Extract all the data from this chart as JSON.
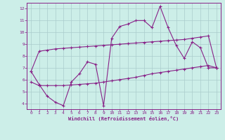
{
  "xlabel": "Windchill (Refroidissement éolien,°C)",
  "background_color": "#cceee8",
  "grid_color": "#aacccc",
  "line_color": "#882288",
  "xlim_min": -0.5,
  "xlim_max": 23.5,
  "ylim_min": 3.5,
  "ylim_max": 12.5,
  "xticks": [
    0,
    1,
    2,
    3,
    4,
    5,
    6,
    7,
    8,
    9,
    10,
    11,
    12,
    13,
    14,
    15,
    16,
    17,
    18,
    19,
    20,
    21,
    22,
    23
  ],
  "yticks": [
    4,
    5,
    6,
    7,
    8,
    9,
    10,
    11,
    12
  ],
  "line1_x": [
    0,
    1,
    2,
    3,
    4,
    5,
    6,
    7,
    8,
    9,
    10,
    11,
    12,
    13,
    14,
    15,
    16,
    17,
    18,
    19,
    20,
    21,
    22,
    23
  ],
  "line1_y": [
    6.7,
    8.4,
    8.5,
    8.6,
    8.65,
    8.7,
    8.75,
    8.8,
    8.85,
    8.9,
    8.95,
    9.0,
    9.05,
    9.1,
    9.15,
    9.2,
    9.25,
    9.3,
    9.35,
    9.4,
    9.5,
    9.6,
    9.7,
    7.0
  ],
  "line2_x": [
    0,
    1,
    2,
    3,
    4,
    5,
    6,
    7,
    8,
    9,
    10,
    11,
    12,
    13,
    14,
    15,
    16,
    17,
    18,
    19,
    20,
    21,
    22,
    23
  ],
  "line2_y": [
    6.7,
    5.6,
    4.6,
    4.1,
    3.8,
    5.8,
    6.5,
    7.5,
    7.3,
    3.8,
    9.5,
    10.5,
    10.7,
    11.0,
    11.0,
    10.4,
    12.2,
    10.4,
    8.9,
    7.8,
    9.2,
    8.7,
    7.0,
    7.0
  ],
  "line3_x": [
    0,
    1,
    2,
    3,
    4,
    5,
    6,
    7,
    8,
    9,
    10,
    11,
    12,
    13,
    14,
    15,
    16,
    17,
    18,
    19,
    20,
    21,
    22,
    23
  ],
  "line3_y": [
    5.8,
    5.5,
    5.5,
    5.5,
    5.5,
    5.55,
    5.6,
    5.65,
    5.7,
    5.8,
    5.9,
    6.0,
    6.1,
    6.2,
    6.35,
    6.5,
    6.6,
    6.7,
    6.8,
    6.9,
    7.0,
    7.1,
    7.2,
    7.0
  ]
}
